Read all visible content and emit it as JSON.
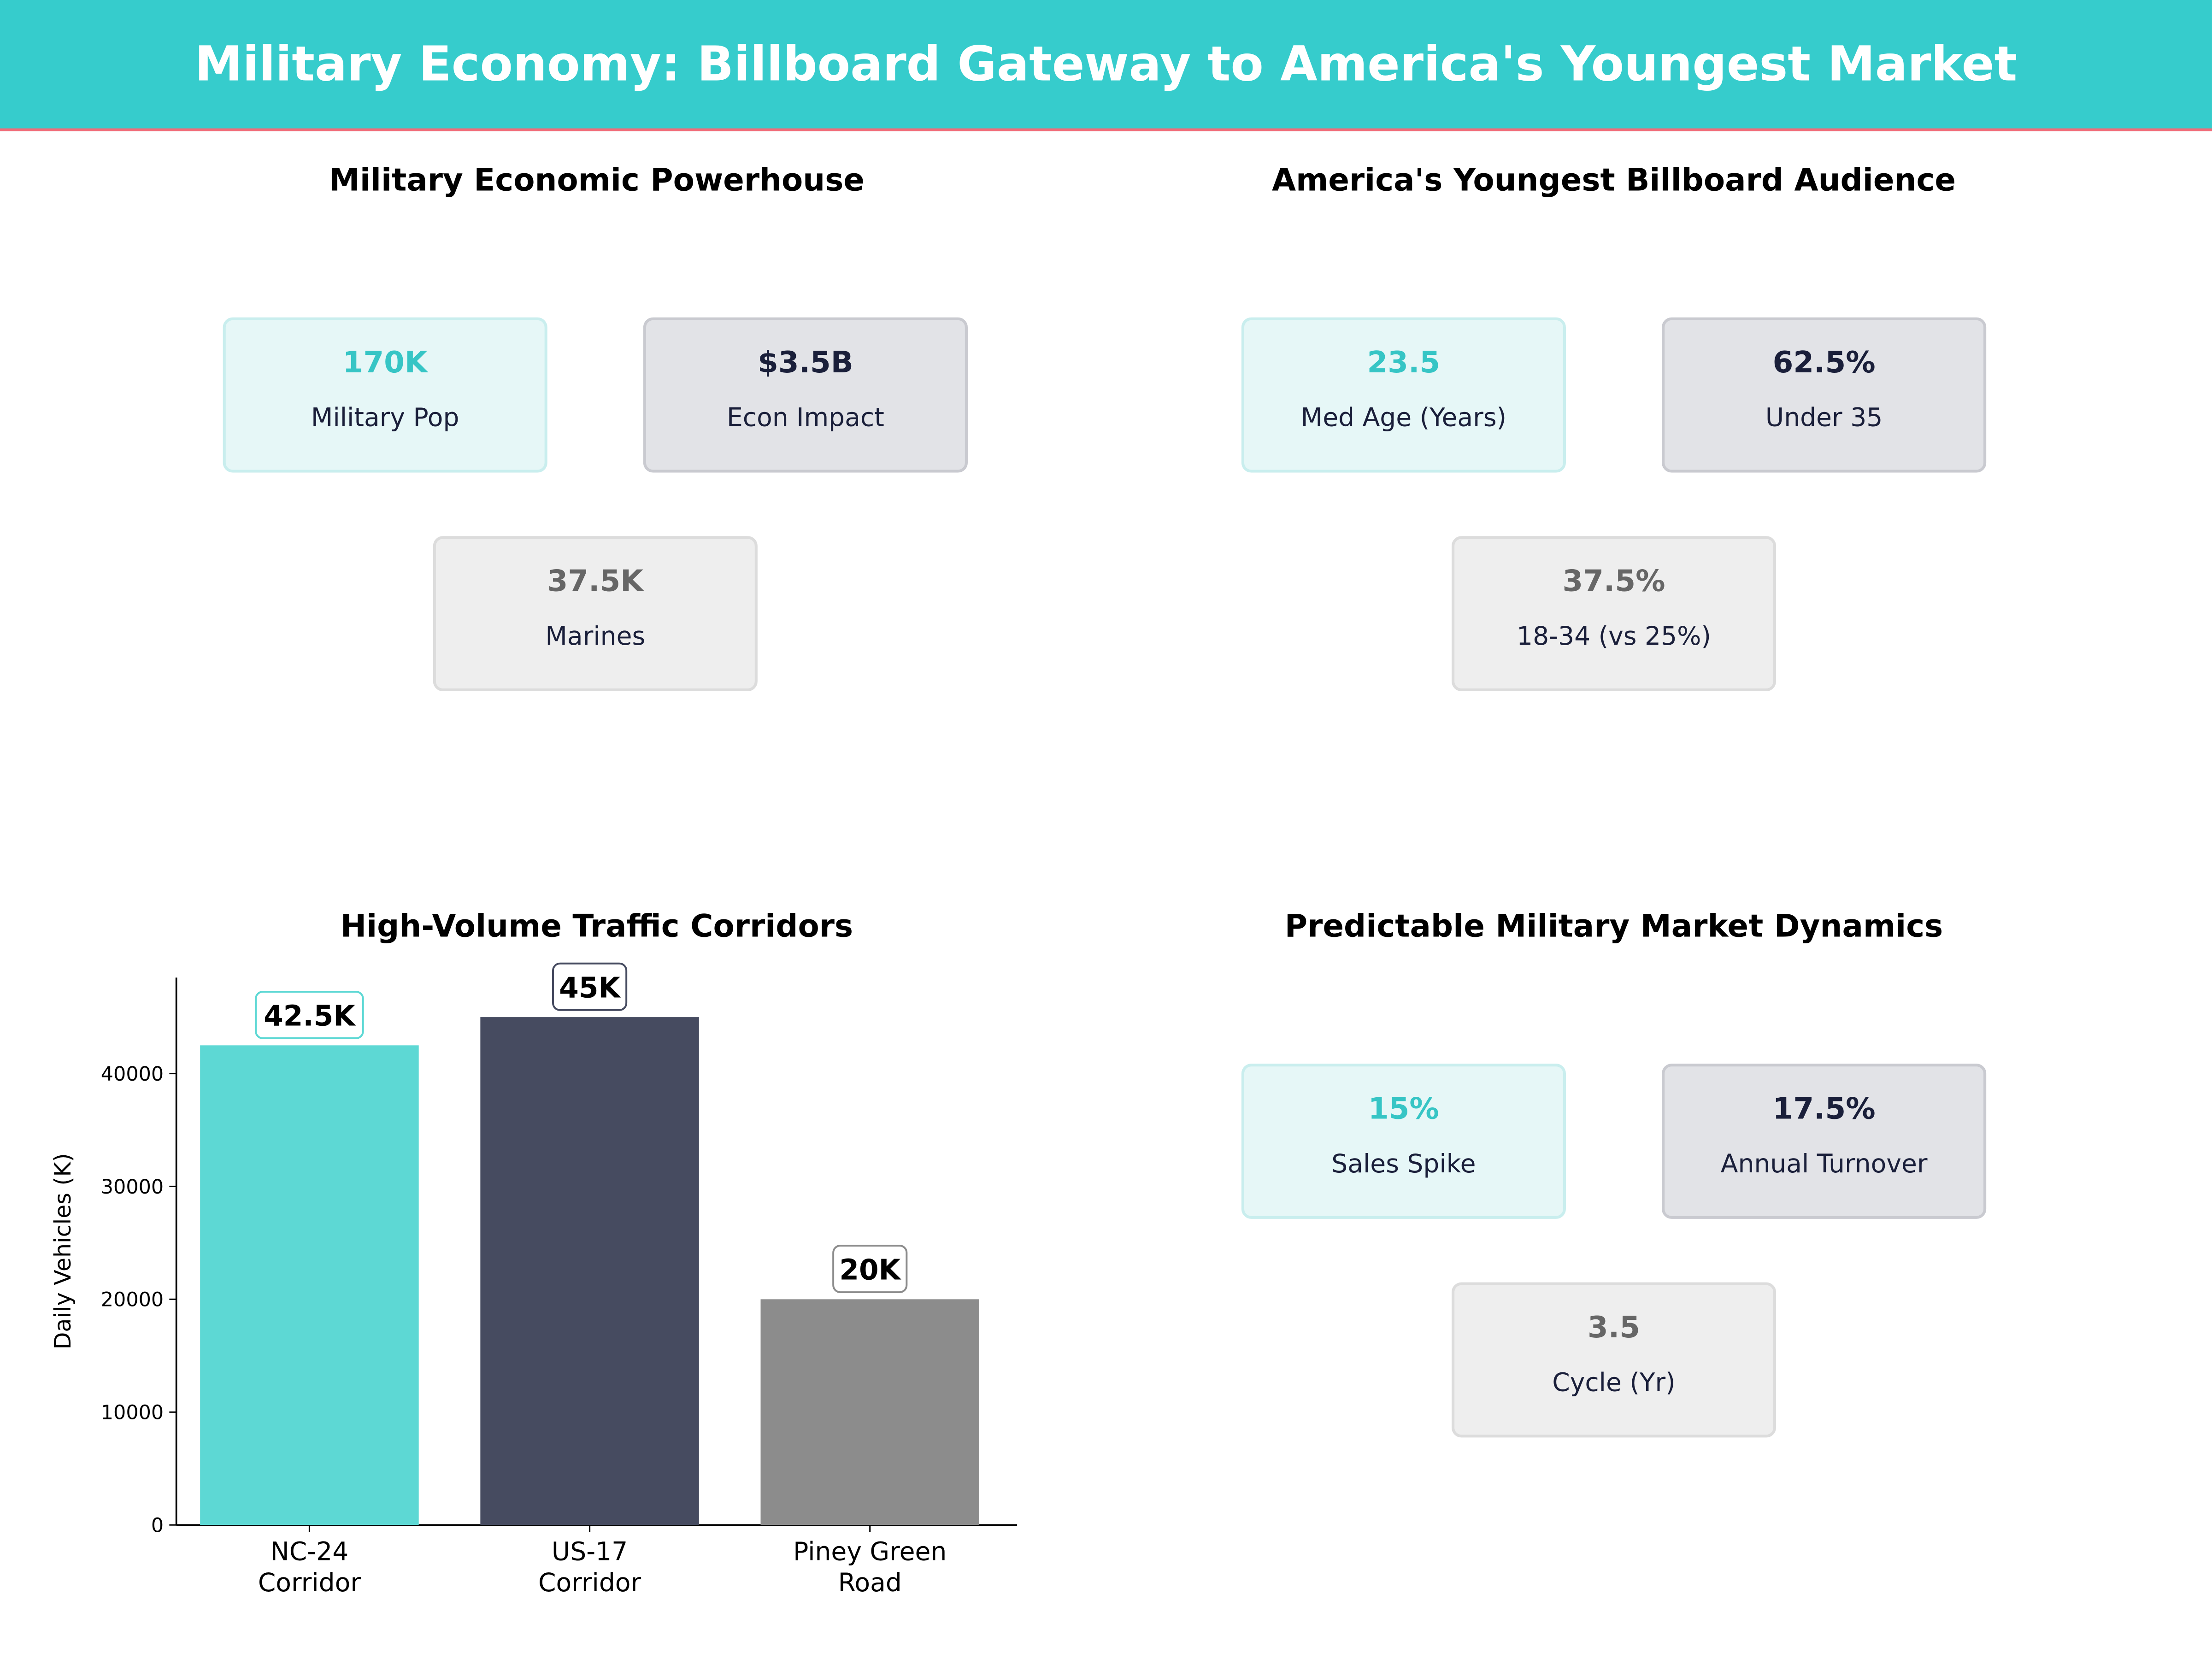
{
  "title": "Military Economy: Billboard Gateway to America's Youngest Market",
  "colors": {
    "header": "#36cccc",
    "accent": "#36c5c5",
    "dark": "#1a1f3a",
    "gray": "#666666"
  },
  "panels": [
    {
      "title": "Military Economic Powerhouse",
      "cards": [
        {
          "value": "170K",
          "label": "Military Pop"
        },
        {
          "value": "$3.5B",
          "label": "Econ Impact"
        },
        {
          "value": "37.5K",
          "label": "Marines"
        }
      ]
    },
    {
      "title": "America's Youngest Billboard Audience",
      "cards": [
        {
          "value": "23.5",
          "label": "Med Age (Years)"
        },
        {
          "value": "62.5%",
          "label": "Under 35"
        },
        {
          "value": "37.5%",
          "label": "18-34 (vs 25%)"
        }
      ]
    },
    {
      "title": "Predictable Military Market Dynamics",
      "cards": [
        {
          "value": "15%",
          "label": "Sales Spike"
        },
        {
          "value": "17.5%",
          "label": "Annual Turnover"
        },
        {
          "value": "3.5",
          "label": "Cycle (Yr)"
        }
      ]
    }
  ],
  "chart_data": {
    "type": "bar",
    "title": "High-Volume Traffic Corridors",
    "ylabel": "Daily Vehicles (K)",
    "categories": [
      "NC-24\nCorridor",
      "US-17\nCorridor",
      "Piney Green\nRoad"
    ],
    "values": [
      42500,
      45000,
      20000
    ],
    "data_labels": [
      "42.5K",
      "45K",
      "20K"
    ],
    "colors": [
      "#5dd8d4",
      "#464b60",
      "#8c8c8c"
    ],
    "label_borders": [
      "#5dd8d4",
      "#464b60",
      "#8c8c8c"
    ],
    "yticks": [
      0,
      10000,
      20000,
      30000,
      40000
    ],
    "ylim": [
      0,
      48500
    ],
    "grid": false
  }
}
